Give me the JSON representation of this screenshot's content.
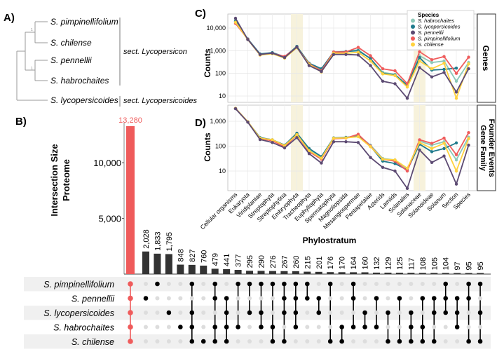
{
  "panels": {
    "a": {
      "label": "A)",
      "taxa": [
        "S. pimpinellifolium",
        "S. chilense",
        "S. pennellii",
        "S. habrochaites",
        "S. lycopersicoides"
      ],
      "support": [
        "1",
        "1"
      ],
      "sections": [
        "sect. Lycopersicon",
        "sect. Lycopersicoides"
      ]
    },
    "b": {
      "label": "B)"
    },
    "c": {
      "label": "C)",
      "strip": "Genes"
    },
    "d": {
      "label": "D)",
      "strip_line1": "Gene Family",
      "strip_line2": "Founder Events"
    }
  },
  "legend": {
    "title": "Species",
    "entries": [
      {
        "name": "S. habrochaites",
        "color": "#8cc9b8"
      },
      {
        "name": "S. lycopersicoides",
        "color": "#1f7a8c"
      },
      {
        "name": "S. pennellii",
        "color": "#5c4a72"
      },
      {
        "name": "S. pimpinellifolium",
        "color": "#ef5b5b"
      },
      {
        "name": "S. chilense",
        "color": "#ffd23f"
      }
    ]
  },
  "chart_data": [
    {
      "type": "bar",
      "title": "Intersection Size Proteome",
      "ylabel": "Intersection Size Proteome",
      "ylim": [
        0,
        13280
      ],
      "yticks": [
        5000,
        10000
      ],
      "ytick_labels": [
        "5,000",
        "10,000"
      ],
      "highlight_color": "#ef5b5b",
      "bar_color": "#333333",
      "values": [
        13280,
        2028,
        1833,
        1795,
        848,
        827,
        760,
        479,
        441,
        377,
        295,
        290,
        276,
        267,
        260,
        215,
        201,
        176,
        170,
        164,
        160,
        132,
        129,
        125,
        117,
        108,
        105,
        104,
        97,
        95,
        95
      ],
      "value_labels": [
        "13,280",
        "2,028",
        "1,833",
        "1,795",
        "848",
        "827",
        "760",
        "479",
        "441",
        "377",
        "295",
        "290",
        "276",
        "267",
        "260",
        "215",
        "201",
        "176",
        "170",
        "164",
        "160",
        "132",
        "129",
        "125",
        "117",
        "108",
        "105",
        "104",
        "97",
        "95",
        "95"
      ],
      "sets": [
        "S. pimpinellifolium",
        "S. pennellii",
        "S. lycopersicoides",
        "S. habrochaites",
        "S. chilense"
      ],
      "membership": [
        [
          0,
          1,
          2,
          3,
          4
        ],
        [
          1
        ],
        [
          0
        ],
        [
          2
        ],
        [
          3
        ],
        [
          0,
          2,
          3,
          4
        ],
        [
          4
        ],
        [
          0,
          1,
          3,
          4
        ],
        [
          1,
          2,
          3,
          4
        ],
        [
          0,
          3
        ],
        [
          0,
          2
        ],
        [
          0,
          2,
          3
        ],
        [
          0,
          3,
          4
        ],
        [
          0,
          1,
          2,
          4
        ],
        [
          0,
          1,
          2,
          3
        ],
        [
          0,
          1
        ],
        [
          1,
          2
        ],
        [
          0,
          4
        ],
        [
          3,
          4
        ],
        [
          0,
          1,
          3
        ],
        [
          2,
          3
        ],
        [
          1,
          3
        ],
        [
          2,
          4
        ],
        [
          1,
          4
        ],
        [
          2,
          3,
          4
        ],
        [
          1,
          3,
          4
        ],
        [
          1,
          2,
          4
        ],
        [
          0,
          1,
          2
        ],
        [
          1,
          2,
          3
        ],
        [
          0,
          1,
          4
        ],
        [
          0,
          2,
          4
        ]
      ]
    },
    {
      "type": "line",
      "title": "Genes",
      "xlabel": "Phylostratum",
      "ylabel": "Counts",
      "yscale": "log",
      "ylim": [
        4,
        40000
      ],
      "yticks": [
        10,
        100,
        1000,
        10000
      ],
      "ytick_labels": [
        "10",
        "100",
        "1,000",
        "10,000"
      ],
      "highlight_categories": [
        "Embryophyta",
        "Solanaceae"
      ],
      "categories": [
        "Cellular organisms",
        "Eukaryota",
        "Viridiplantae",
        "Streptophyta",
        "Streptophytina",
        "Embryophyta",
        "Tracheophyta",
        "Euphyllophyta",
        "Spermatophyta",
        "Magnoliopsida",
        "Mesangiospermae",
        "Pentapetalae",
        "Asterids",
        "Lamiids",
        "Solanales",
        "Solanaceae",
        "Solanoideae",
        "Solanum",
        "Section",
        "Species"
      ],
      "series": [
        {
          "name": "S. habrochaites",
          "values": [
            22000,
            3200,
            700,
            800,
            520,
            1500,
            260,
            140,
            850,
            900,
            1100,
            450,
            110,
            90,
            30,
            600,
            300,
            350,
            45,
            300
          ]
        },
        {
          "name": "S. lycopersicoides",
          "values": [
            20000,
            3300,
            720,
            820,
            540,
            1550,
            280,
            160,
            870,
            920,
            1000,
            450,
            100,
            85,
            30,
            500,
            140,
            150,
            170,
            null
          ]
        },
        {
          "name": "S. pennellii",
          "values": [
            27000,
            3100,
            680,
            780,
            500,
            1450,
            220,
            120,
            680,
            680,
            650,
            220,
            45,
            35,
            8,
            180,
            70,
            110,
            15,
            160
          ]
        },
        {
          "name": "S. pimpinellifolium",
          "values": [
            16000,
            3200,
            650,
            760,
            560,
            1400,
            260,
            130,
            880,
            880,
            1400,
            600,
            160,
            130,
            35,
            900,
            400,
            550,
            100,
            520
          ]
        },
        {
          "name": "S. chilense",
          "values": [
            18000,
            3100,
            640,
            740,
            470,
            1350,
            250,
            115,
            780,
            760,
            850,
            350,
            95,
            80,
            25,
            350,
            160,
            280,
            8,
            260
          ]
        }
      ]
    },
    {
      "type": "line",
      "title": "Gene Family Founder Events",
      "xlabel": "Phylostratum",
      "ylabel": "Counts",
      "yscale": "log",
      "ylim": [
        1.6,
        7000
      ],
      "yticks": [
        10,
        100,
        1000
      ],
      "ytick_labels": [
        "10",
        "100",
        "1,000"
      ],
      "highlight_categories": [
        "Embryophyta",
        "Solanaceae"
      ],
      "categories": [
        "Cellular organisms",
        "Eukaryota",
        "Viridiplantae",
        "Streptophyta",
        "Streptophytina",
        "Embryophyta",
        "Tracheophyta",
        "Euphyllophyta",
        "Spermatophyta",
        "Magnoliopsida",
        "Mesangiospermae",
        "Pentapetalae",
        "Asterids",
        "Lamiids",
        "Solanales",
        "Solanaceae",
        "Solanoideae",
        "Solanum",
        "Section",
        "Species"
      ],
      "series": [
        {
          "name": "S. habrochaites",
          "values": [
            3300,
            950,
            210,
            175,
            105,
            320,
            75,
            35,
            210,
            220,
            270,
            110,
            32,
            28,
            12,
            160,
            110,
            150,
            28,
            230
          ]
        },
        {
          "name": "S. lycopersicoides",
          "values": [
            3300,
            950,
            220,
            180,
            110,
            330,
            80,
            38,
            215,
            225,
            250,
            100,
            25,
            20,
            11,
            120,
            60,
            80,
            135,
            null
          ]
        },
        {
          "name": "S. pennellii",
          "values": [
            3200,
            920,
            185,
            140,
            85,
            220,
            50,
            21,
            150,
            150,
            140,
            35,
            14,
            10,
            2,
            70,
            22,
            40,
            3,
            110
          ]
        },
        {
          "name": "S. pimpinellifolium",
          "values": [
            3300,
            950,
            200,
            165,
            95,
            280,
            60,
            30,
            200,
            210,
            300,
            100,
            30,
            25,
            10,
            180,
            130,
            210,
            45,
            350
          ]
        },
        {
          "name": "S. chilense",
          "values": [
            3300,
            960,
            210,
            180,
            105,
            290,
            65,
            33,
            210,
            215,
            240,
            95,
            30,
            28,
            13,
            140,
            80,
            130,
            10,
            200
          ]
        }
      ]
    }
  ]
}
